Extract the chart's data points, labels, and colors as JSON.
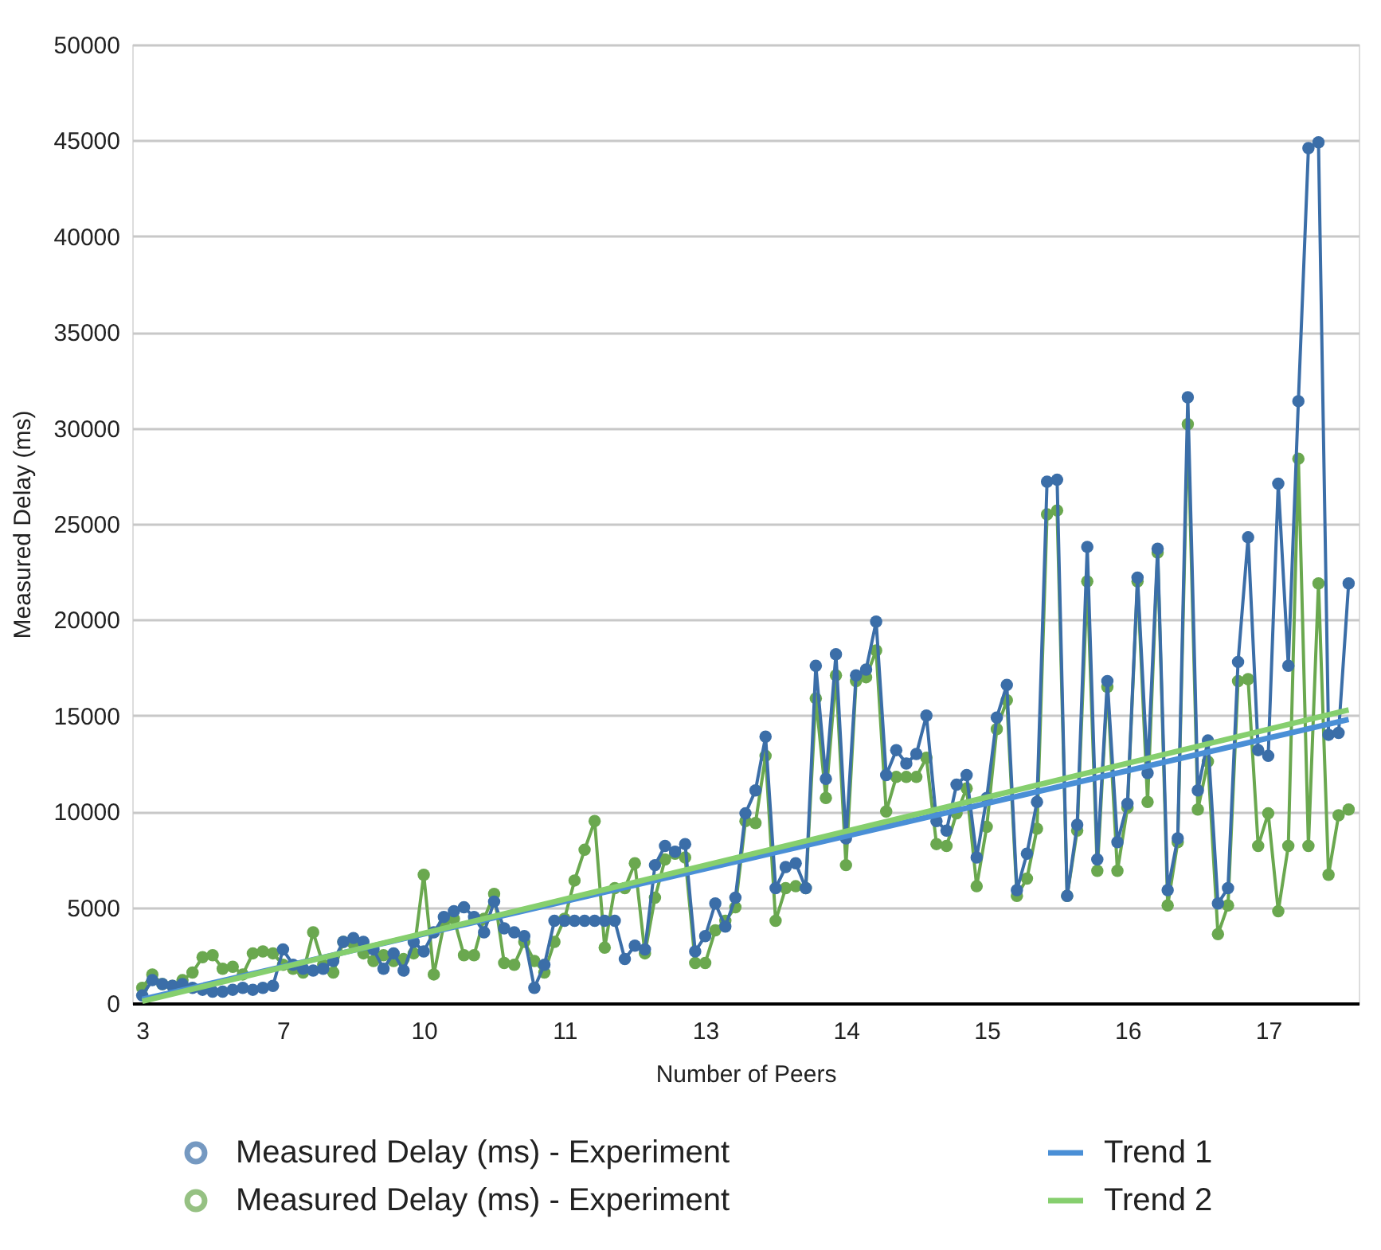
{
  "chart_data": {
    "type": "line",
    "xlabel": "Number of Peers",
    "ylabel": "Measured Delay (ms)",
    "categories": [
      "3",
      null,
      null,
      null,
      null,
      null,
      null,
      null,
      null,
      null,
      null,
      null,
      null,
      null,
      "7",
      null,
      null,
      null,
      null,
      null,
      null,
      null,
      null,
      null,
      null,
      null,
      null,
      null,
      "10",
      null,
      null,
      null,
      null,
      null,
      null,
      null,
      null,
      null,
      null,
      null,
      null,
      null,
      "11",
      null,
      null,
      null,
      null,
      null,
      null,
      null,
      null,
      null,
      null,
      null,
      null,
      null,
      "13",
      null,
      null,
      null,
      null,
      null,
      null,
      null,
      null,
      null,
      null,
      null,
      null,
      null,
      "14",
      null,
      null,
      null,
      null,
      null,
      null,
      null,
      null,
      null,
      null,
      null,
      null,
      null,
      "15",
      null,
      null,
      null,
      null,
      null,
      null,
      null,
      null,
      null,
      null,
      null,
      null,
      null,
      "16",
      null,
      null,
      null,
      null,
      null,
      null,
      null,
      null,
      null,
      null,
      null,
      null,
      null,
      "17",
      null,
      null,
      null,
      null,
      null,
      null,
      null,
      null
    ],
    "ylim": [
      0,
      50000
    ],
    "yticks": [
      0,
      5000,
      10000,
      15000,
      20000,
      25000,
      30000,
      35000,
      40000,
      45000,
      50000
    ],
    "grid": "y",
    "legend": "bottom",
    "series": [
      {
        "name": "Measured Delay (ms) - Experiment",
        "marker": "circle",
        "color": "#3b6ea8",
        "values": [
          400,
          1200,
          1000,
          900,
          1000,
          800,
          700,
          600,
          600,
          700,
          800,
          700,
          800,
          900,
          2800,
          2000,
          1800,
          1700,
          1800,
          2200,
          3200,
          3400,
          3200,
          2800,
          1800,
          2600,
          1700,
          3200,
          2700,
          3700,
          4500,
          4800,
          5000,
          4500,
          3700,
          5300,
          3900,
          3700,
          3500,
          800,
          2000,
          4300,
          4300,
          4300,
          4300,
          4300,
          4300,
          4300,
          2300,
          3000,
          2800,
          7200,
          8200,
          7900,
          8300,
          2700,
          3500,
          5200,
          4000,
          5500,
          9900,
          11100,
          13900,
          6000,
          7100,
          7300,
          6000,
          17600,
          11700,
          18200,
          8600,
          17100,
          17400,
          19900,
          11900,
          13200,
          12500,
          13000,
          15000,
          9500,
          9000,
          11400,
          11900,
          7600,
          10700,
          14900,
          16600,
          5900,
          7800,
          10500,
          27200,
          27300,
          5600,
          9300,
          23800,
          7500,
          16800,
          8400,
          10400,
          22200,
          12000,
          23700,
          5900,
          8600,
          31600,
          11100,
          13700,
          5200,
          6000,
          17800,
          24300,
          13200,
          12900,
          27100,
          17600,
          31400,
          44600,
          44900,
          14000,
          14100,
          21900
        ]
      },
      {
        "name": "Measured Delay (ms) - Experiment",
        "marker": "circle",
        "color": "#6aa84f",
        "values": [
          800,
          1500,
          1000,
          900,
          1200,
          1600,
          2400,
          2500,
          1800,
          1900,
          1500,
          2600,
          2700,
          2600,
          2000,
          1800,
          1600,
          3700,
          2000,
          1600,
          3200,
          3100,
          2600,
          2200,
          2500,
          2200,
          2300,
          2600,
          6700,
          1500,
          4100,
          4400,
          2500,
          2500,
          4400,
          5700,
          2100,
          2000,
          3200,
          2200,
          1600,
          3200,
          4400,
          6400,
          8000,
          9500,
          2900,
          6000,
          6000,
          7300,
          2600,
          5500,
          7500,
          7800,
          7600,
          2100,
          2100,
          3800,
          4300,
          5000,
          9500,
          9400,
          12900,
          4300,
          6000,
          6100,
          6000,
          15900,
          10700,
          17100,
          7200,
          16800,
          17000,
          18400,
          10000,
          11800,
          11800,
          11800,
          12800,
          8300,
          8200,
          9900,
          11200,
          6100,
          9200,
          14300,
          15800,
          5600,
          6500,
          9100,
          25500,
          25700,
          5600,
          9000,
          22000,
          6900,
          16500,
          6900,
          10200,
          22000,
          10500,
          23500,
          5100,
          8400,
          30200,
          10100,
          12600,
          3600,
          5100,
          16800,
          16900,
          8200,
          9900,
          4800,
          8200,
          28400,
          8200,
          21900,
          6700,
          9800,
          10100
        ]
      },
      {
        "name": "Trend 1",
        "marker": "none",
        "color": "#4a8fd6",
        "values": [
          200,
          null,
          null,
          null,
          null,
          null,
          null,
          null,
          null,
          null,
          null,
          null,
          null,
          null,
          null,
          null,
          null,
          null,
          null,
          null,
          null,
          null,
          null,
          null,
          null,
          null,
          null,
          null,
          null,
          null,
          null,
          null,
          null,
          null,
          null,
          null,
          null,
          null,
          null,
          null,
          null,
          null,
          null,
          null,
          null,
          null,
          null,
          null,
          null,
          null,
          null,
          null,
          null,
          null,
          null,
          null,
          null,
          null,
          null,
          null,
          null,
          null,
          null,
          null,
          null,
          null,
          null,
          null,
          null,
          null,
          null,
          null,
          null,
          null,
          null,
          null,
          null,
          null,
          null,
          null,
          null,
          null,
          null,
          null,
          null,
          null,
          null,
          null,
          null,
          null,
          null,
          null,
          null,
          null,
          null,
          null,
          null,
          null,
          null,
          null,
          null,
          null,
          null,
          null,
          null,
          null,
          null,
          null,
          null,
          null,
          null,
          null,
          null,
          null,
          null,
          null,
          null,
          null,
          null,
          null,
          14800
        ]
      },
      {
        "name": "Trend 2",
        "marker": "none",
        "color": "#86cf6e",
        "values": [
          100,
          null,
          null,
          null,
          null,
          null,
          null,
          null,
          null,
          null,
          null,
          null,
          null,
          null,
          null,
          null,
          null,
          null,
          null,
          null,
          null,
          null,
          null,
          null,
          null,
          null,
          null,
          null,
          null,
          null,
          null,
          null,
          null,
          null,
          null,
          null,
          null,
          null,
          null,
          null,
          null,
          null,
          null,
          null,
          null,
          null,
          null,
          null,
          null,
          null,
          null,
          null,
          null,
          null,
          null,
          null,
          null,
          null,
          null,
          null,
          null,
          null,
          null,
          null,
          null,
          null,
          null,
          null,
          null,
          null,
          null,
          null,
          null,
          null,
          null,
          null,
          null,
          null,
          null,
          null,
          null,
          null,
          null,
          null,
          null,
          null,
          null,
          null,
          null,
          null,
          null,
          null,
          null,
          null,
          null,
          null,
          null,
          null,
          null,
          null,
          null,
          null,
          null,
          null,
          null,
          null,
          null,
          null,
          null,
          null,
          null,
          null,
          null,
          null,
          null,
          null,
          null,
          null,
          null,
          null,
          15300
        ]
      }
    ]
  }
}
